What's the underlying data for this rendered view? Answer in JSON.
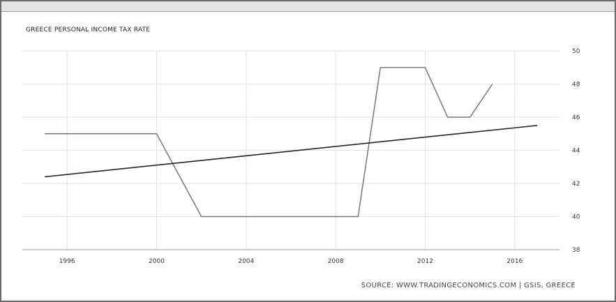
{
  "chart_data": {
    "type": "line",
    "title": "GREECE PERSONAL INCOME TAX RATE",
    "source": "SOURCE: WWW.TRADINGECONOMICS.COM | GSIS, GREECE",
    "xlim": [
      1994,
      2018
    ],
    "ylim": [
      38,
      50
    ],
    "x_ticks": [
      "1996",
      "2000",
      "2004",
      "2008",
      "2012",
      "2016"
    ],
    "y_ticks": [
      "38",
      "40",
      "42",
      "44",
      "46",
      "48",
      "50"
    ],
    "grid": true,
    "series": [
      {
        "x": [
          1995,
          2000,
          2002,
          2009,
          2010,
          2012,
          2013,
          2014,
          2015
        ],
        "values": [
          45,
          45,
          40,
          40,
          49,
          49,
          46,
          46,
          48
        ],
        "color": "#777777"
      },
      {
        "x": [
          1995,
          2017
        ],
        "values": [
          42.4,
          45.5
        ],
        "color": "#222222"
      }
    ]
  }
}
